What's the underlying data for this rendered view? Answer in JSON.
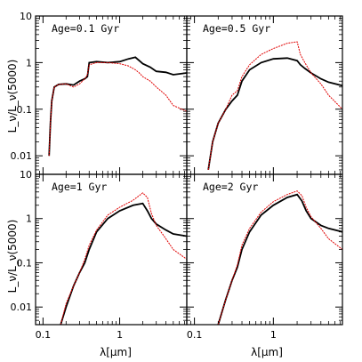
{
  "figure": {
    "ylabel": "L_ν/L_ν(5000)",
    "xlabel": "λ[μm]"
  },
  "chart_data": {
    "type": "line",
    "scale": {
      "x": "log",
      "y": "log"
    },
    "xlim": [
      0.08,
      7.5
    ],
    "ylim": [
      0.004,
      10
    ],
    "x_ticks": [
      0.1,
      1
    ],
    "x_tick_labels": [
      "0.1",
      "1"
    ],
    "y_ticks": [
      0.01,
      0.1,
      1,
      10
    ],
    "y_tick_labels": [
      "0.01",
      "0.1",
      "1",
      "10"
    ],
    "series_colors": {
      "black": "#000000",
      "red": "#e00000"
    },
    "panels": [
      {
        "label": "Age=0.1 Gyr",
        "x": [
          0.12,
          0.125,
          0.13,
          0.14,
          0.16,
          0.2,
          0.25,
          0.3,
          0.35,
          0.38,
          0.4,
          0.5,
          0.7,
          1.0,
          1.3,
          1.6,
          1.8,
          2.0,
          2.5,
          3.0,
          4.0,
          5.0,
          7.5
        ],
        "series": [
          {
            "name": "black",
            "values": [
              0.01,
              0.05,
              0.15,
              0.3,
              0.34,
              0.35,
              0.33,
              0.4,
              0.45,
              0.5,
              1.0,
              1.05,
              1.0,
              1.05,
              1.2,
              1.3,
              1.1,
              0.95,
              0.8,
              0.65,
              0.62,
              0.55,
              0.6
            ]
          },
          {
            "name": "red",
            "values": [
              0.01,
              0.05,
              0.15,
              0.3,
              0.34,
              0.35,
              0.3,
              0.35,
              0.45,
              0.55,
              0.9,
              1.0,
              1.0,
              0.95,
              0.85,
              0.7,
              0.6,
              0.5,
              0.4,
              0.3,
              0.2,
              0.12,
              0.09
            ]
          }
        ]
      },
      {
        "label": "Age=0.5 Gyr",
        "x": [
          0.15,
          0.17,
          0.2,
          0.25,
          0.3,
          0.35,
          0.4,
          0.5,
          0.7,
          1.0,
          1.5,
          2.0,
          2.2,
          2.5,
          3.0,
          4.0,
          5.0,
          7.5
        ],
        "series": [
          {
            "name": "black",
            "values": [
              0.005,
              0.02,
              0.05,
              0.1,
              0.15,
              0.2,
              0.4,
              0.7,
              1.0,
              1.2,
              1.25,
              1.1,
              0.9,
              0.75,
              0.6,
              0.45,
              0.38,
              0.32
            ]
          },
          {
            "name": "red",
            "values": [
              0.005,
              0.02,
              0.05,
              0.1,
              0.2,
              0.25,
              0.5,
              0.9,
              1.5,
              2.0,
              2.6,
              2.8,
              1.5,
              1.0,
              0.6,
              0.35,
              0.2,
              0.1
            ]
          }
        ]
      },
      {
        "label": "Age=1 Gyr",
        "x": [
          0.17,
          0.2,
          0.25,
          0.3,
          0.35,
          0.4,
          0.5,
          0.7,
          1.0,
          1.5,
          2.0,
          2.3,
          2.6,
          3.0,
          4.0,
          5.0,
          7.5
        ],
        "series": [
          {
            "name": "black",
            "values": [
              0.004,
              0.01,
              0.03,
              0.06,
              0.1,
              0.2,
              0.5,
              1.0,
              1.5,
              2.0,
              2.2,
              1.5,
              1.0,
              0.75,
              0.55,
              0.45,
              0.4
            ]
          },
          {
            "name": "red",
            "values": [
              0.004,
              0.012,
              0.03,
              0.06,
              0.12,
              0.25,
              0.55,
              1.2,
              1.8,
              2.6,
              3.8,
              3.0,
              1.3,
              0.7,
              0.35,
              0.2,
              0.12
            ]
          }
        ]
      },
      {
        "label": "Age=2 Gyr",
        "x": [
          0.2,
          0.25,
          0.3,
          0.35,
          0.4,
          0.5,
          0.7,
          1.0,
          1.5,
          2.0,
          2.3,
          2.6,
          3.0,
          4.0,
          5.0,
          7.5
        ],
        "series": [
          {
            "name": "black",
            "values": [
              0.004,
              0.015,
              0.04,
              0.08,
              0.2,
              0.5,
              1.2,
              2.0,
              3.0,
              3.5,
              2.5,
              1.5,
              1.0,
              0.7,
              0.6,
              0.5
            ]
          },
          {
            "name": "red",
            "values": [
              0.004,
              0.015,
              0.04,
              0.09,
              0.25,
              0.6,
              1.4,
              2.4,
              3.5,
              4.2,
              3.3,
              1.8,
              1.1,
              0.6,
              0.35,
              0.2
            ]
          }
        ]
      }
    ]
  }
}
